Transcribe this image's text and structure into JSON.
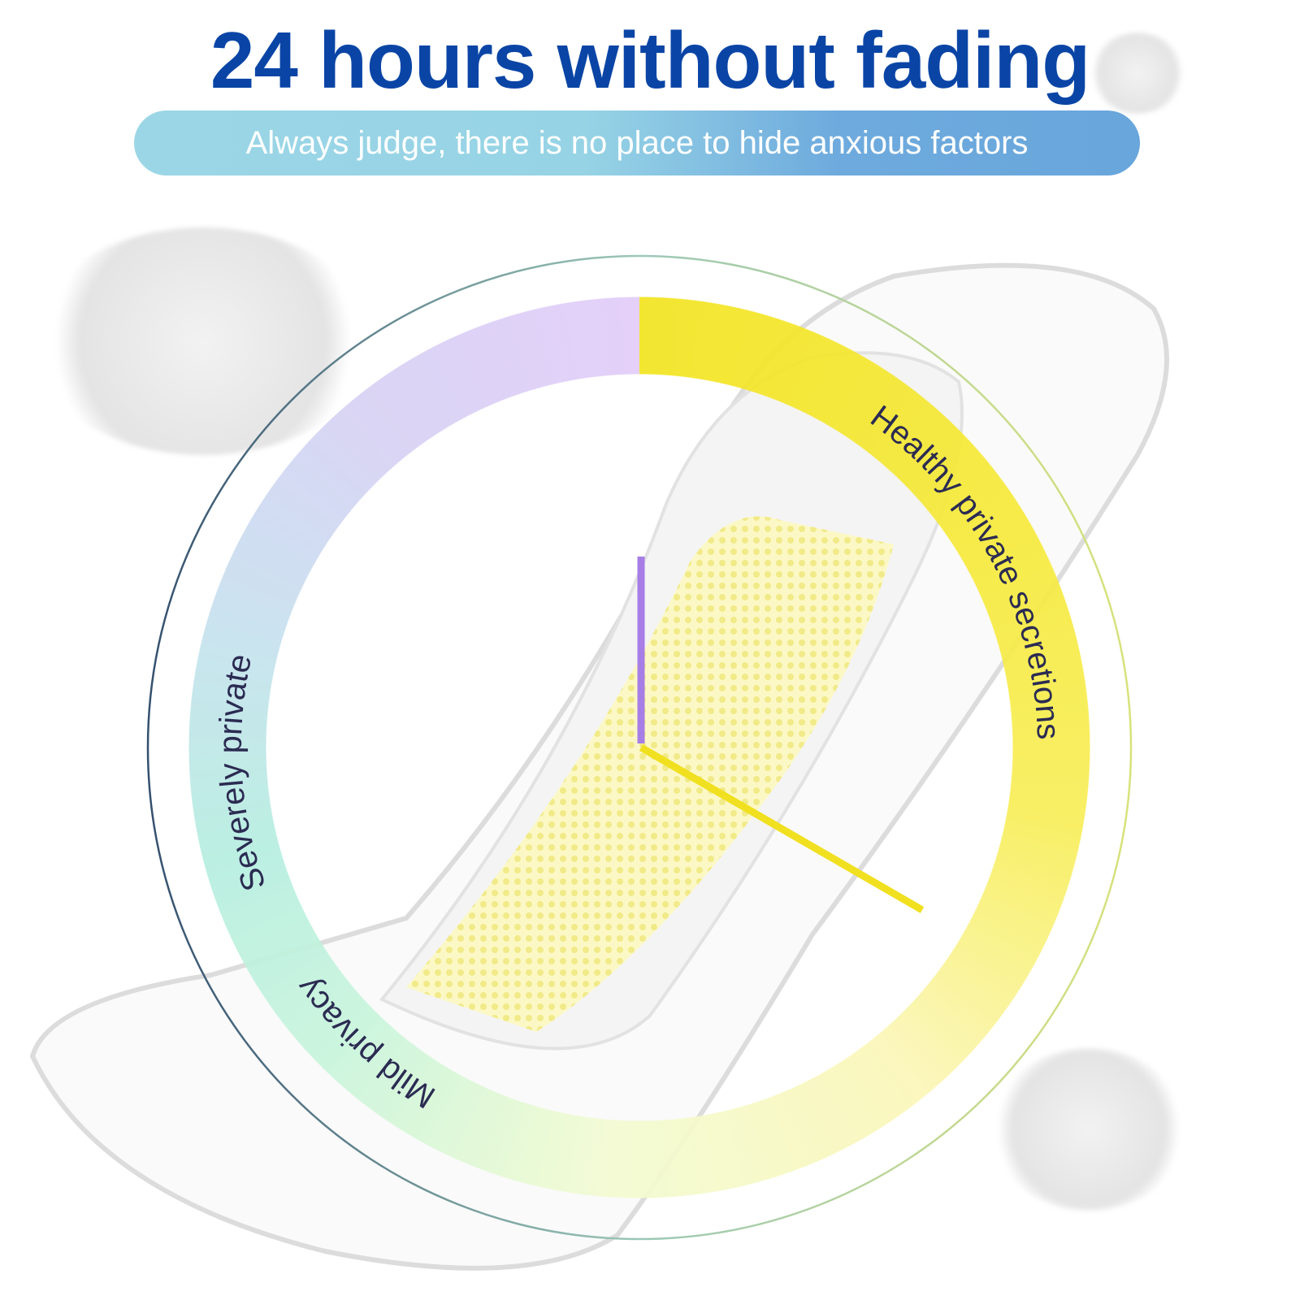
{
  "header": {
    "title": "24 hours without fading",
    "subtitle": "Always judge, there is no place to hide anxious factors"
  },
  "ring_labels": {
    "top_left": "Severely private",
    "right": "Healthy private secretions",
    "bottom_left": "Mild privacy"
  },
  "colors": {
    "title": "#0a45a6",
    "label_text": "#2b2b52",
    "indicator_purple": "#a77de6",
    "indicator_yellow": "#f0e020",
    "pad_strip": "#fbf6a8"
  }
}
